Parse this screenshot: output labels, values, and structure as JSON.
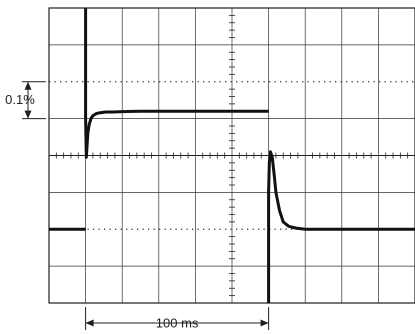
{
  "chart_data": {
    "type": "line",
    "title": "",
    "xlabel": "",
    "ylabel": "",
    "grid": true,
    "grid_divisions": {
      "x": 10,
      "y": 8
    },
    "xlim": [
      0,
      10
    ],
    "ylim": [
      -4,
      4
    ],
    "annotations": {
      "vertical_marker": {
        "label": "0.1%",
        "from_div": 1,
        "to_div": 2
      },
      "time_marker": {
        "label": "100 ms",
        "from_div": 1,
        "to_div": 6
      }
    },
    "series": [
      {
        "x": [
          1.0,
          1.0,
          1.02,
          1.06,
          1.1,
          1.15,
          1.2,
          1.3,
          1.4,
          1.55,
          1.75,
          2.0,
          2.5,
          3.0,
          4.0,
          5.0,
          6.0
        ],
        "y": [
          4.0,
          1.0,
          -0.05,
          0.6,
          0.85,
          1.01,
          1.08,
          1.14,
          1.16,
          1.18,
          1.18,
          1.19,
          1.2,
          1.2,
          1.2,
          1.2,
          1.2
        ]
      },
      {
        "x": [
          0.0,
          1.0,
          1.0
        ],
        "y": [
          -2.0,
          -2.0,
          -2.0
        ]
      },
      {
        "x": [
          6.0,
          6.0,
          6.02,
          6.05,
          6.1,
          6.15,
          6.2,
          6.3,
          6.4,
          6.55,
          6.75,
          7.0,
          7.5,
          8.0,
          9.0,
          10.0
        ],
        "y": [
          -4.0,
          -1.0,
          -0.2,
          0.1,
          -0.05,
          -0.5,
          -1.0,
          -1.5,
          -1.8,
          -1.92,
          -1.97,
          -2.0,
          -2.0,
          -2.0,
          -2.0,
          -2.0
        ]
      }
    ]
  }
}
